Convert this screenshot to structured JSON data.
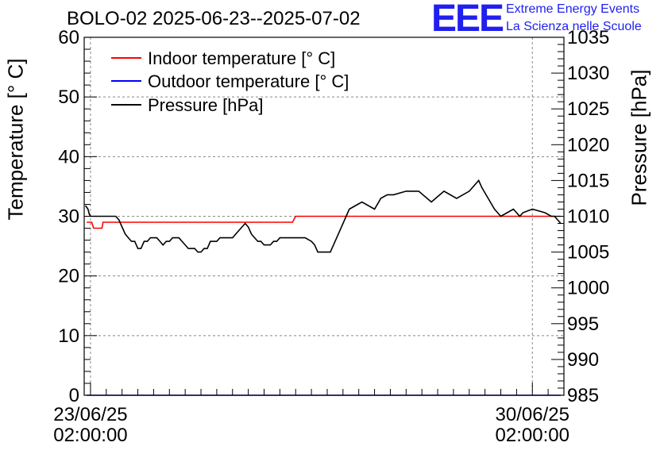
{
  "header": {
    "title": "BOLO-02 2025-06-23--2025-07-02",
    "logo_text": "EEE",
    "logo_line1": "Extreme Energy Events",
    "logo_line2": "La Scienza nelle Scuole"
  },
  "chart_data": {
    "type": "line",
    "ylabel_left": "Temperature [° C]",
    "ylabel_right": "Pressure [hPa]",
    "y_left_range": [
      0,
      60
    ],
    "y_right_range": [
      985,
      1035
    ],
    "y_left_ticks": [
      0,
      10,
      20,
      30,
      40,
      50,
      60
    ],
    "y_right_ticks": [
      985,
      990,
      995,
      1000,
      1005,
      1010,
      1015,
      1020,
      1025,
      1030,
      1035
    ],
    "x_range_days": [
      -0.1,
      7.5
    ],
    "x_ticks": [
      {
        "day": 0,
        "line1": "23/06/25",
        "line2": "02:00:00"
      },
      {
        "day": 7,
        "line1": "30/06/25",
        "line2": "02:00:00"
      }
    ],
    "grid": true,
    "legend_position": "top-left",
    "colors": {
      "indoor": "#ff0000",
      "outdoor": "#0000ff",
      "pressure": "#000000"
    },
    "series": [
      {
        "name": "Indoor temperature [° C]",
        "axis": "left",
        "x": [
          -0.06,
          0.02,
          0.05,
          0.1,
          0.18,
          0.2,
          0.25,
          0.3,
          3.2,
          3.25,
          3.3,
          7.45
        ],
        "y": [
          29,
          29,
          28,
          28,
          28,
          29,
          29,
          29,
          29,
          30,
          30,
          30
        ]
      },
      {
        "name": "Outdoor temperature [° C]",
        "axis": "left",
        "x": [
          -0.06,
          7.45
        ],
        "y": [
          0,
          0
        ]
      },
      {
        "name": "Pressure [hPa]",
        "axis": "right",
        "x": [
          -0.08,
          -0.04,
          -0.02,
          0.0,
          0.2,
          0.4,
          0.45,
          0.5,
          0.55,
          0.6,
          0.65,
          0.7,
          0.75,
          0.8,
          0.85,
          0.9,
          0.95,
          1.0,
          1.05,
          1.1,
          1.15,
          1.2,
          1.25,
          1.3,
          1.35,
          1.4,
          1.45,
          1.5,
          1.55,
          1.6,
          1.65,
          1.7,
          1.75,
          1.8,
          1.85,
          1.9,
          1.95,
          2.0,
          2.05,
          2.1,
          2.15,
          2.2,
          2.25,
          2.3,
          2.35,
          2.4,
          2.45,
          2.5,
          2.55,
          2.6,
          2.65,
          2.7,
          2.75,
          2.8,
          2.85,
          2.9,
          2.95,
          3.0,
          3.05,
          3.1,
          3.15,
          3.2,
          3.25,
          3.3,
          3.4,
          3.5,
          3.55,
          3.6,
          3.7,
          3.8,
          3.9,
          4.1,
          4.2,
          4.3,
          4.5,
          4.6,
          4.7,
          4.8,
          5.0,
          5.2,
          5.4,
          5.6,
          5.8,
          6.0,
          6.15,
          6.2,
          6.3,
          6.4,
          6.5,
          6.6,
          6.7,
          6.8,
          6.85,
          7.0,
          7.2,
          7.3,
          7.35,
          7.4,
          7.45
        ],
        "y": [
          1011.5,
          1011,
          1010.3,
          1010,
          1010,
          1010,
          1009.5,
          1008.5,
          1007.5,
          1007,
          1006.5,
          1006.5,
          1005.5,
          1005.5,
          1006.5,
          1006.5,
          1007,
          1007,
          1007,
          1006.5,
          1006,
          1006.5,
          1006.5,
          1007,
          1007,
          1007,
          1006.5,
          1006,
          1005.5,
          1005.5,
          1005.5,
          1005,
          1005,
          1005.5,
          1005.5,
          1006.5,
          1006.5,
          1006.5,
          1007,
          1007,
          1007,
          1007,
          1007,
          1007.5,
          1008,
          1008.5,
          1009,
          1008.5,
          1007.5,
          1007,
          1006.5,
          1006.5,
          1006,
          1006,
          1006,
          1006.5,
          1006.5,
          1007,
          1007,
          1007,
          1007,
          1007,
          1007,
          1007,
          1007,
          1006.5,
          1006,
          1005,
          1005,
          1005,
          1007,
          1011,
          1011.5,
          1012,
          1011,
          1012.5,
          1013,
          1013,
          1013.5,
          1013.5,
          1012,
          1013.5,
          1012.5,
          1013.5,
          1015,
          1014,
          1012.5,
          1011,
          1010,
          1010.5,
          1011,
          1010,
          1010.5,
          1011,
          1010.5,
          1010,
          1010,
          1009.5,
          1009
        ]
      }
    ]
  }
}
